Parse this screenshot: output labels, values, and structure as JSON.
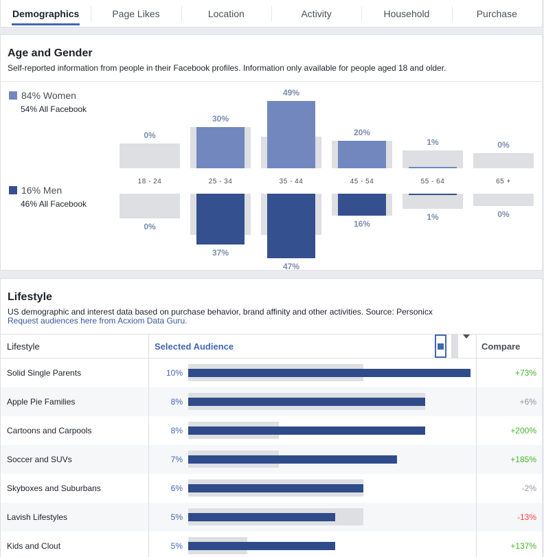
{
  "tabs": [
    {
      "label": "Demographics",
      "active": true
    },
    {
      "label": "Page Likes",
      "active": false
    },
    {
      "label": "Location",
      "active": false
    },
    {
      "label": "Activity",
      "active": false
    },
    {
      "label": "Household",
      "active": false
    },
    {
      "label": "Purchase",
      "active": false
    }
  ],
  "age_gender": {
    "title": "Age and Gender",
    "subtitle": "Self-reported information from people in their Facebook profiles. Information only available for people aged 18 and older.",
    "women": {
      "label": "84% Women",
      "sub": "54% All Facebook",
      "color": "#7287bd"
    },
    "men": {
      "label": "16% Men",
      "sub": "46% All Facebook",
      "color": "#34508f"
    },
    "benchmark_color": "#dddfe2"
  },
  "chart_data": {
    "type": "bar",
    "categories": [
      "18 - 24",
      "25 - 34",
      "35 - 44",
      "45 - 54",
      "55 - 64",
      "65 +"
    ],
    "series": [
      {
        "name": "Women",
        "values": [
          0,
          30,
          49,
          20,
          1,
          0
        ],
        "labels": [
          "0%",
          "30%",
          "49%",
          "20%",
          "1%",
          "0%"
        ],
        "benchmark": [
          18,
          30,
          23,
          20,
          13,
          11
        ]
      },
      {
        "name": "Men",
        "values": [
          0,
          37,
          47,
          16,
          1,
          0
        ],
        "labels": [
          "0%",
          "37%",
          "47%",
          "16%",
          "1%",
          "0%"
        ],
        "benchmark": [
          18,
          30,
          30,
          16,
          11,
          9
        ]
      }
    ],
    "ylim": [
      0,
      50
    ]
  },
  "lifestyle": {
    "title": "Lifestyle",
    "subtitle": "US demographic and interest data based on purchase behavior, brand affinity and other activities. Source: Personicx",
    "link": "Request audiences here from Acxiom Data Guru.",
    "col_lifestyle": "Lifestyle",
    "col_selected": "Selected Audience",
    "col_compare": "Compare",
    "max_value": 10,
    "rows": [
      {
        "name": "Solid Single Parents",
        "pct_label": "10%",
        "selected": 10,
        "benchmark": 6.2,
        "compare": "+73%",
        "compare_color": "#42b72a"
      },
      {
        "name": "Apple Pie Families",
        "pct_label": "8%",
        "selected": 8.4,
        "benchmark": 8.4,
        "compare": "+6%",
        "compare_color": "#90949c"
      },
      {
        "name": "Cartoons and Carpools",
        "pct_label": "8%",
        "selected": 8.4,
        "benchmark": 3.2,
        "compare": "+200%",
        "compare_color": "#42b72a"
      },
      {
        "name": "Soccer and SUVs",
        "pct_label": "7%",
        "selected": 7.4,
        "benchmark": 3.2,
        "compare": "+185%",
        "compare_color": "#42b72a"
      },
      {
        "name": "Skyboxes and Suburbans",
        "pct_label": "6%",
        "selected": 6.2,
        "benchmark": 6.2,
        "compare": "-2%",
        "compare_color": "#90949c"
      },
      {
        "name": "Lavish Lifestyles",
        "pct_label": "5%",
        "selected": 5.2,
        "benchmark": 6.2,
        "compare": "-13%",
        "compare_color": "#fa3e3e"
      },
      {
        "name": "Kids and Clout",
        "pct_label": "5%",
        "selected": 5.2,
        "benchmark": 2.1,
        "compare": "+137%",
        "compare_color": "#42b72a"
      }
    ]
  }
}
